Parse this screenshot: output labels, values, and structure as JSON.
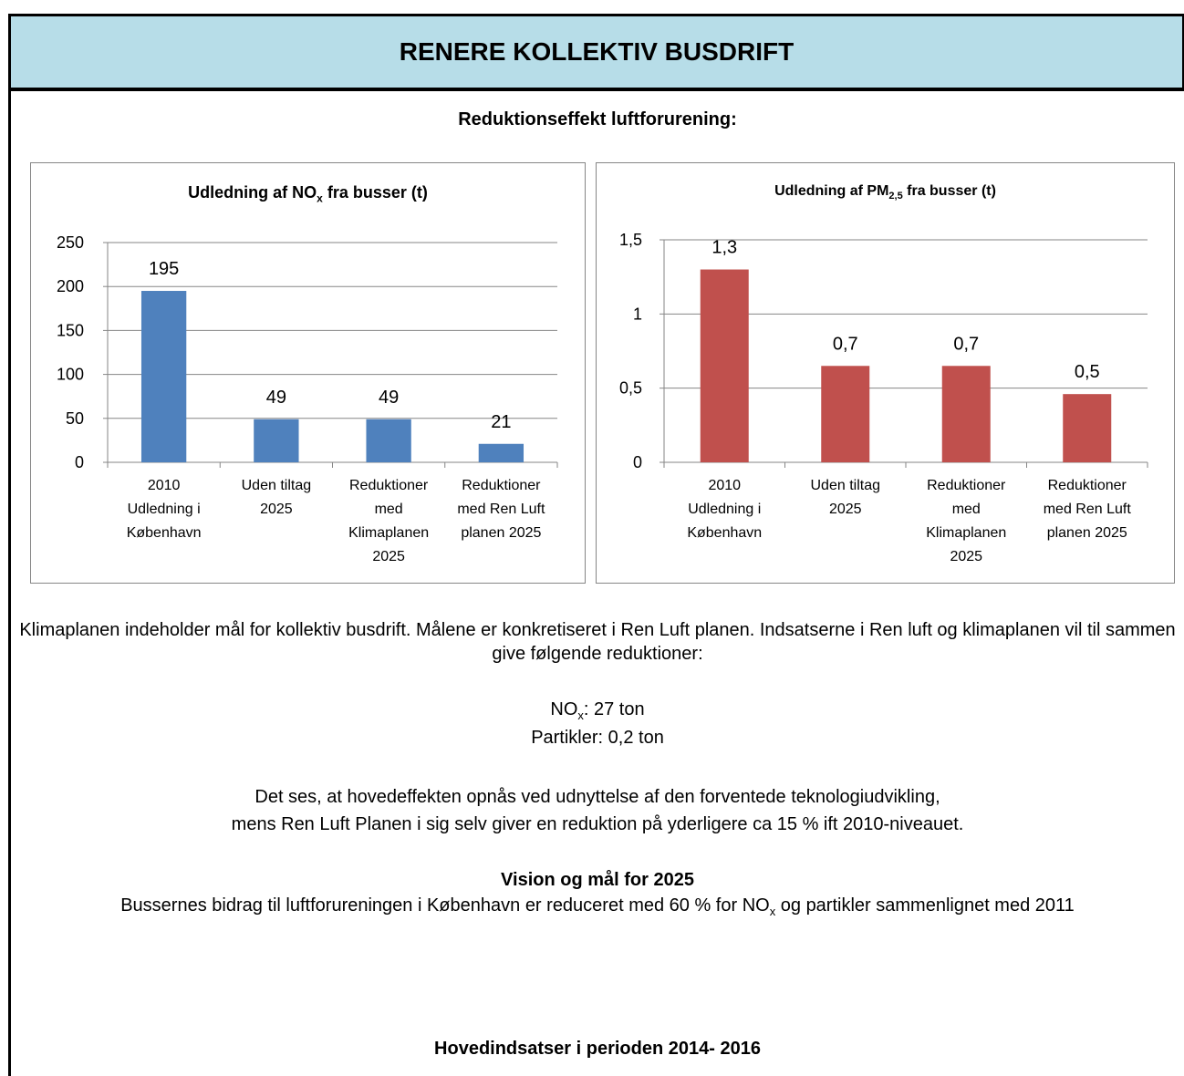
{
  "header": {
    "title": "RENERE KOLLEKTIV BUSDRIFT"
  },
  "subtitle": "Reduktionseffekt luftforurening:",
  "chart_data": [
    {
      "type": "bar",
      "title": [
        "Udledning af NO",
        "x",
        " fra busser (t)"
      ],
      "categories": [
        "2010 Udledning i København",
        "Uden tiltag 2025",
        "Reduktioner med Klimaplanen 2025",
        "Reduktioner med Ren Luft planen 2025"
      ],
      "values": [
        195,
        49,
        49,
        21
      ],
      "color": "#4f81bd",
      "ylim": [
        0,
        250
      ],
      "yticks": [
        0,
        50,
        100,
        150,
        200,
        250
      ],
      "grid": true
    },
    {
      "type": "bar",
      "title": [
        "Udledning af PM",
        "2,5",
        " fra busser (t)"
      ],
      "categories": [
        "2010 Udledning i København",
        "Uden tiltag 2025",
        "Reduktioner med Klimaplanen 2025",
        "Reduktioner med Ren Luft planen 2025"
      ],
      "values": [
        1.3,
        0.65,
        0.65,
        0.46
      ],
      "value_labels": [
        "1,3",
        "0,7",
        "0,7",
        "0,5"
      ],
      "color": "#c0504d",
      "ylim": [
        0,
        1.5
      ],
      "yticks": [
        0,
        {
          "value": 0.5,
          "label": "0,5"
        },
        1,
        {
          "value": 1.5,
          "label": "1,5"
        }
      ],
      "grid": true
    }
  ],
  "body": {
    "intro": "Klimaplanen indeholder mål for kollektiv busdrift. Målene er konkretiseret i Ren Luft planen. Indsatserne i Ren luft og klimaplanen vil til sammen give følgende reduktioner:",
    "nox": [
      "NO",
      "x",
      ": 27 ton"
    ],
    "particles": "Partikler: 0,2 ton",
    "effect": [
      "Det ses, at hovedeffekten opnås ved udnyttelse af den forventede teknologiudvikling,",
      "mens Ren Luft Planen i sig selv giver en reduktion på yderligere ca 15 % ift 2010-niveauet."
    ],
    "vision_title": "Vision og mål for 2025",
    "vision": [
      "Bussernes bidrag til luftforureningen i København er reduceret med 60 % for NO",
      "x",
      " og partikler sammenlignet med 2011"
    ],
    "main_title": "Hovedindsatser i perioden 2014- 2016"
  }
}
